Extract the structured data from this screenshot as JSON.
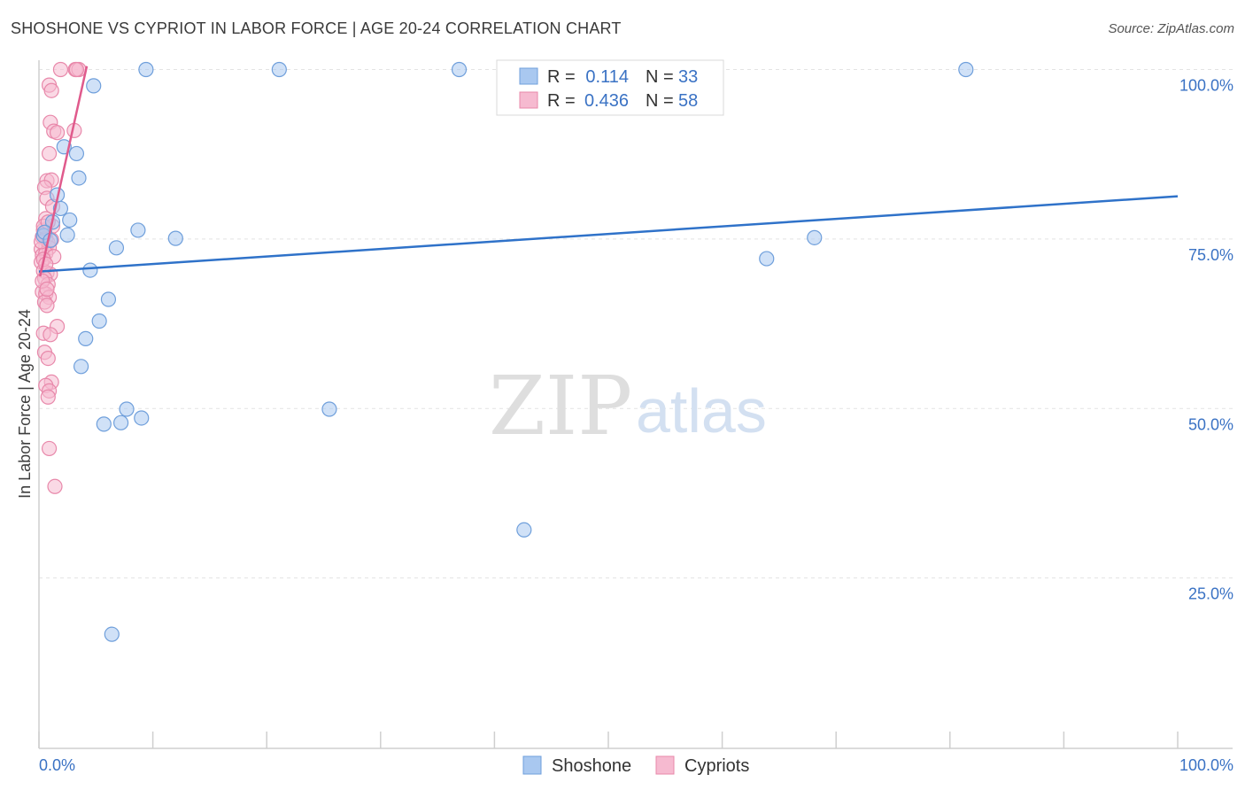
{
  "header": {
    "title": "SHOSHONE VS CYPRIOT IN LABOR FORCE | AGE 20-24 CORRELATION CHART",
    "source": "Source: ZipAtlas.com"
  },
  "legend_top": {
    "rows": [
      {
        "r_label": "R =",
        "r_value": "0.114",
        "n_label": "N =",
        "n_value": "33",
        "color": "#a9c8f0",
        "stroke": "#6f9fdb"
      },
      {
        "r_label": "R =",
        "r_value": "0.436",
        "n_label": "N =",
        "n_value": "58",
        "color": "#f6bad0",
        "stroke": "#e888aa"
      }
    ]
  },
  "legend_bottom": {
    "items": [
      {
        "label": "Shoshone",
        "color": "#a9c8f0",
        "stroke": "#6f9fdb"
      },
      {
        "label": "Cypriots",
        "color": "#f6bad0",
        "stroke": "#e888aa"
      }
    ]
  },
  "watermark": {
    "part1": "ZIP",
    "part2": "atlas"
  },
  "chart_data": {
    "type": "scatter",
    "title": "SHOSHONE VS CYPRIOT IN LABOR FORCE | AGE 20-24 CORRELATION CHART",
    "xlabel": "",
    "ylabel": "In Labor Force | Age 20-24",
    "xlim": [
      0,
      100
    ],
    "ylim": [
      0,
      100
    ],
    "x_tick_labels": [
      "0.0%",
      "100.0%"
    ],
    "y_ticks": [
      25,
      50,
      75,
      100
    ],
    "y_tick_labels": [
      "25.0%",
      "50.0%",
      "75.0%",
      "100.0%"
    ],
    "grid": true,
    "legend_position": "top-center",
    "series": [
      {
        "name": "Shoshone",
        "color": "#4a86d8",
        "trend": {
          "x": [
            0,
            100
          ],
          "y": [
            70.2,
            81.3
          ],
          "color": "#2f72c9"
        },
        "points": [
          [
            9.4,
            100
          ],
          [
            21.1,
            100
          ],
          [
            36.9,
            100
          ],
          [
            81.4,
            100
          ],
          [
            4.8,
            97.6
          ],
          [
            2.2,
            88.6
          ],
          [
            3.3,
            87.6
          ],
          [
            3.5,
            84.0
          ],
          [
            1.6,
            81.5
          ],
          [
            1.9,
            79.5
          ],
          [
            2.7,
            77.8
          ],
          [
            1.2,
            77.5
          ],
          [
            0.4,
            75.5
          ],
          [
            2.5,
            75.6
          ],
          [
            8.7,
            76.3
          ],
          [
            12.0,
            75.1
          ],
          [
            68.1,
            75.2
          ],
          [
            6.8,
            73.7
          ],
          [
            63.9,
            72.1
          ],
          [
            4.5,
            70.4
          ],
          [
            6.1,
            66.1
          ],
          [
            5.3,
            62.9
          ],
          [
            4.1,
            60.3
          ],
          [
            3.7,
            56.2
          ],
          [
            7.7,
            49.9
          ],
          [
            25.5,
            49.9
          ],
          [
            9.0,
            48.6
          ],
          [
            5.7,
            47.7
          ],
          [
            7.2,
            47.9
          ],
          [
            42.6,
            32.1
          ],
          [
            6.4,
            16.7
          ],
          [
            0.5,
            76.0
          ],
          [
            1.0,
            74.8
          ]
        ]
      },
      {
        "name": "Cypriots",
        "color": "#e8719a",
        "trend": {
          "x": [
            0.1,
            4.2
          ],
          "y": [
            69.5,
            100.5
          ],
          "color": "#e05a8c"
        },
        "points": [
          [
            1.9,
            100
          ],
          [
            3.2,
            100
          ],
          [
            3.5,
            100
          ],
          [
            3.3,
            100
          ],
          [
            0.9,
            97.7
          ],
          [
            1.1,
            96.9
          ],
          [
            1.0,
            92.2
          ],
          [
            1.3,
            90.9
          ],
          [
            1.6,
            90.7
          ],
          [
            3.1,
            91.0
          ],
          [
            0.9,
            87.6
          ],
          [
            0.7,
            83.6
          ],
          [
            1.1,
            83.7
          ],
          [
            0.5,
            82.6
          ],
          [
            0.7,
            81.0
          ],
          [
            1.2,
            79.8
          ],
          [
            0.6,
            78.0
          ],
          [
            1.2,
            76.9
          ],
          [
            0.4,
            76.3
          ],
          [
            0.5,
            75.8
          ],
          [
            0.3,
            75.3
          ],
          [
            0.6,
            75.1
          ],
          [
            0.8,
            74.4
          ],
          [
            0.2,
            73.5
          ],
          [
            0.9,
            73.7
          ],
          [
            0.3,
            72.6
          ],
          [
            0.6,
            72.9
          ],
          [
            1.3,
            72.4
          ],
          [
            0.2,
            71.6
          ],
          [
            0.4,
            70.3
          ],
          [
            0.7,
            70.0
          ],
          [
            1.0,
            69.8
          ],
          [
            0.5,
            69.2
          ],
          [
            0.8,
            68.3
          ],
          [
            0.3,
            67.2
          ],
          [
            0.6,
            66.9
          ],
          [
            0.9,
            66.4
          ],
          [
            0.5,
            65.7
          ],
          [
            0.7,
            65.2
          ],
          [
            1.6,
            62.1
          ],
          [
            0.4,
            61.1
          ],
          [
            1.0,
            60.9
          ],
          [
            0.5,
            58.3
          ],
          [
            0.8,
            57.4
          ],
          [
            1.1,
            53.9
          ],
          [
            0.6,
            53.4
          ],
          [
            0.9,
            52.6
          ],
          [
            0.8,
            51.7
          ],
          [
            0.9,
            44.1
          ],
          [
            1.4,
            38.5
          ],
          [
            0.2,
            74.6
          ],
          [
            0.4,
            72.0
          ],
          [
            0.6,
            71.3
          ],
          [
            0.3,
            68.8
          ],
          [
            0.7,
            67.6
          ],
          [
            1.1,
            74.9
          ],
          [
            0.4,
            76.9
          ],
          [
            0.8,
            77.5
          ]
        ]
      }
    ]
  }
}
